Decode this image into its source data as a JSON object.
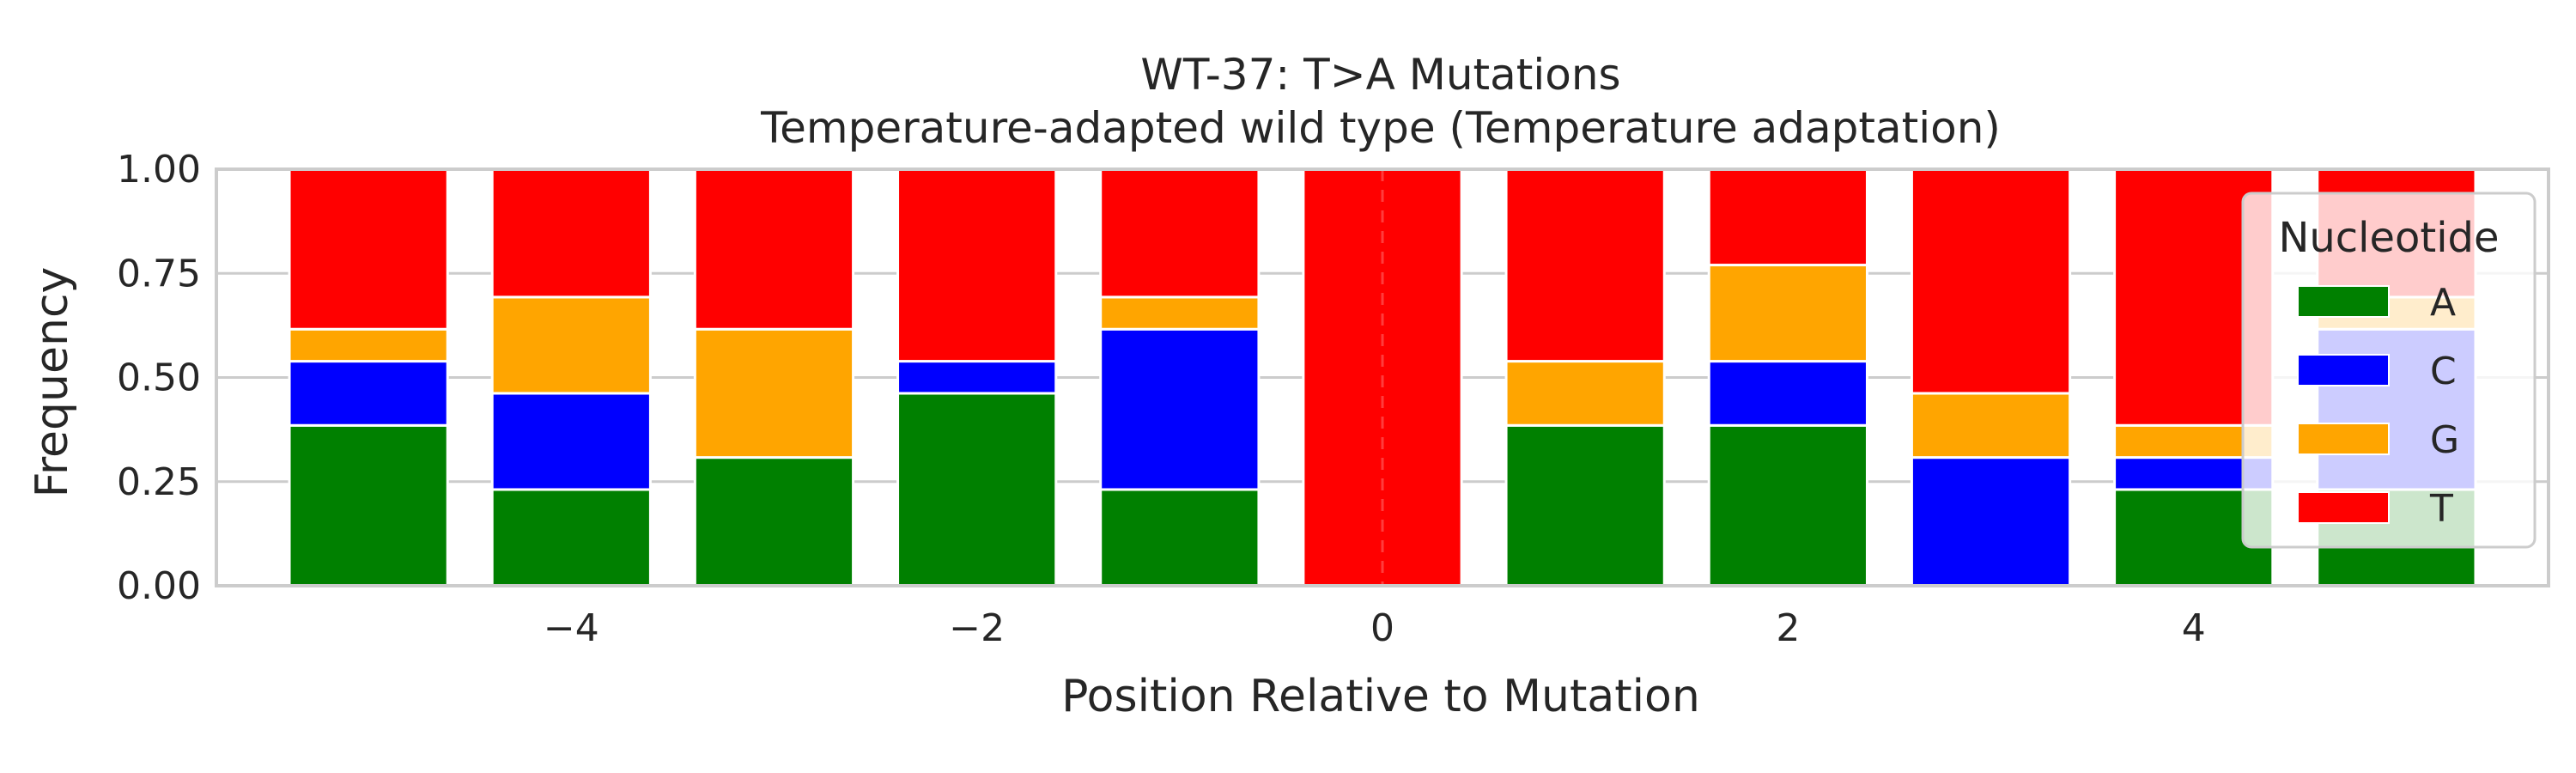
{
  "chart_data": {
    "type": "bar",
    "stacked": true,
    "title": "WT-37: T>A Mutations",
    "subtitle": "Temperature-adapted wild type (Temperature adaptation)",
    "xlabel": "Position Relative to Mutation",
    "ylabel": "Frequency",
    "x": [
      -5,
      -4,
      -3,
      -2,
      -1,
      0,
      1,
      2,
      3,
      4,
      5
    ],
    "xlim": [
      -5.75,
      5.75
    ],
    "ylim": [
      0,
      1
    ],
    "xticks": [
      -4,
      -2,
      0,
      2,
      4
    ],
    "xtick_labels": [
      "−4",
      "−2",
      "0",
      "2",
      "4"
    ],
    "yticks": [
      0,
      0.25,
      0.5,
      0.75,
      1
    ],
    "ytick_labels": [
      "0.00",
      "0.25",
      "0.50",
      "0.75",
      "1.00"
    ],
    "grid": true,
    "reference_line_x": 0,
    "legend": {
      "title": "Nucleotide",
      "position": "right"
    },
    "series": [
      {
        "name": "A",
        "color": "#008000",
        "values": [
          0.385,
          0.231,
          0.308,
          0.462,
          0.231,
          0.0,
          0.385,
          0.385,
          0.0,
          0.231,
          0.231
        ]
      },
      {
        "name": "C",
        "color": "#0000ff",
        "values": [
          0.154,
          0.231,
          0.0,
          0.077,
          0.385,
          0.0,
          0.0,
          0.154,
          0.308,
          0.077,
          0.385
        ]
      },
      {
        "name": "G",
        "color": "#ffa500",
        "values": [
          0.077,
          0.231,
          0.308,
          0.0,
          0.077,
          0.0,
          0.154,
          0.231,
          0.154,
          0.077,
          0.077
        ]
      },
      {
        "name": "T",
        "color": "#ff0000",
        "values": [
          0.384,
          0.307,
          0.384,
          0.461,
          0.307,
          1.0,
          0.461,
          0.23,
          0.538,
          0.615,
          0.307
        ]
      }
    ]
  }
}
